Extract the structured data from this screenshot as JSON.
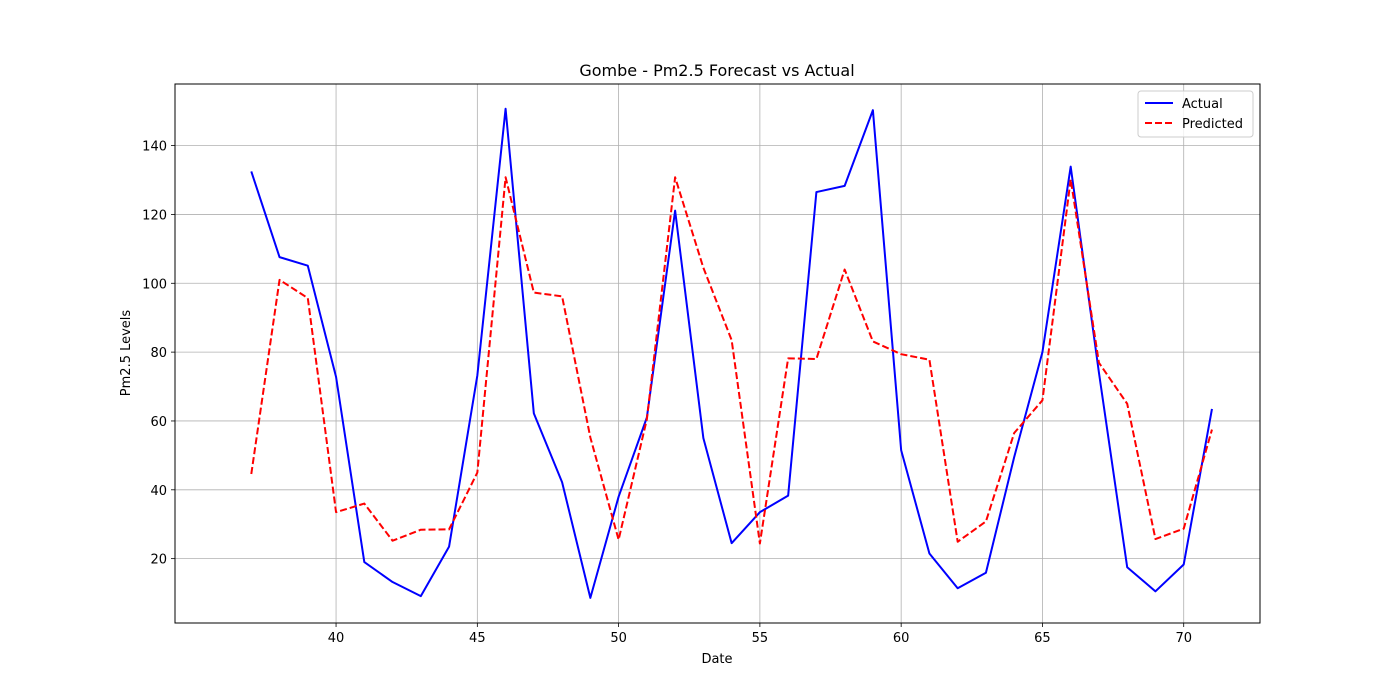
{
  "chart_data": {
    "type": "line",
    "title": "Gombe - Pm2.5 Forecast vs Actual",
    "xlabel": "Date",
    "ylabel": "Pm2.5 Levels",
    "xlim": [
      34.3,
      72.7
    ],
    "ylim": [
      1.3,
      157.9
    ],
    "xticks": [
      40,
      45,
      50,
      55,
      60,
      65,
      70
    ],
    "yticks": [
      20,
      40,
      60,
      80,
      100,
      120,
      140
    ],
    "grid": true,
    "legend_position": "top-right",
    "x": [
      37,
      38,
      39,
      40,
      41,
      42,
      43,
      44,
      45,
      46,
      47,
      48,
      49,
      50,
      51,
      52,
      53,
      54,
      55,
      56,
      57,
      58,
      59,
      60,
      61,
      62,
      63,
      64,
      65,
      66,
      67,
      68,
      69,
      70,
      71
    ],
    "series": [
      {
        "name": "Actual",
        "color": "#0000ff",
        "style": "solid",
        "values": [
          132.5,
          107.6,
          105.1,
          72.8,
          19.0,
          13.2,
          9.1,
          23.5,
          73.2,
          150.7,
          62.2,
          42.2,
          8.6,
          38.0,
          61.0,
          121.1,
          55.0,
          24.5,
          33.5,
          38.3,
          126.5,
          128.3,
          150.3,
          51.5,
          21.5,
          11.4,
          15.9,
          49.5,
          80.0,
          133.9,
          74.0,
          17.5,
          10.5,
          18.3,
          63.5
        ]
      },
      {
        "name": "Predicted",
        "color": "#ff0000",
        "style": "dashed",
        "values": [
          44.6,
          101.0,
          95.7,
          33.5,
          36.0,
          25.2,
          28.4,
          28.5,
          45.0,
          130.8,
          97.3,
          96.2,
          55.2,
          25.5,
          60.5,
          130.8,
          104.5,
          83.5,
          24.4,
          78.2,
          78.0,
          104.0,
          83.1,
          79.4,
          77.8,
          24.9,
          30.8,
          56.5,
          66.0,
          130.2,
          76.9,
          65.0,
          25.7,
          28.7,
          57.5
        ]
      }
    ]
  }
}
